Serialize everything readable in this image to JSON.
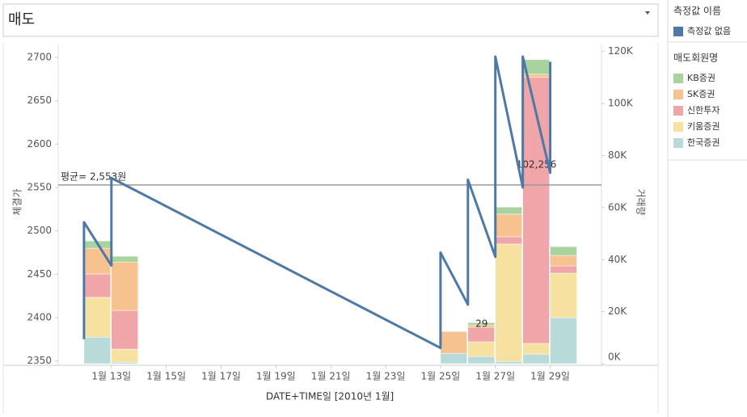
{
  "filter_label": "매도",
  "chart_data": {
    "type": "combo",
    "x_label": "DATE+TIME일 [2010년 1월]",
    "y_label": "체결가",
    "y2_label": "거래량",
    "xlim": [
      11.06,
      30.87
    ],
    "xticks": [
      {
        "value": 13,
        "label": "1월 13일"
      },
      {
        "value": 15,
        "label": "1월 15일"
      },
      {
        "value": 17,
        "label": "1월 17일"
      },
      {
        "value": 19,
        "label": "1월 19일"
      },
      {
        "value": 21,
        "label": "1월 21일"
      },
      {
        "value": 23,
        "label": "1월 23일"
      },
      {
        "value": 25,
        "label": "1월 25일"
      },
      {
        "value": 27,
        "label": "1월 27일"
      },
      {
        "value": 29,
        "label": "1월 29일"
      }
    ],
    "ylim": [
      2345,
      2715
    ],
    "yticks": [
      2350,
      2400,
      2450,
      2500,
      2550,
      2600,
      2650,
      2700
    ],
    "y2lim": [
      -600,
      122700
    ],
    "y2ticks": [
      {
        "value": 0,
        "label": "0K"
      },
      {
        "value": 20000,
        "label": "20K"
      },
      {
        "value": 40000,
        "label": "40K"
      },
      {
        "value": 60000,
        "label": "60K"
      },
      {
        "value": 80000,
        "label": "80K"
      },
      {
        "value": 100000,
        "label": "100K"
      },
      {
        "value": 120000,
        "label": "120K"
      }
    ],
    "legend_title": "매도회원명",
    "x": [
      12,
      13,
      25,
      26,
      27,
      28,
      29
    ],
    "series": [
      {
        "name": "KB증권",
        "color": "#a9d39e",
        "axis": "y2",
        "values": [
          2800,
          2200,
          0,
          900,
          2700,
          5600,
          3400
        ]
      },
      {
        "name": "SK증권",
        "color": "#f6c28f",
        "axis": "y2",
        "values": [
          9900,
          18600,
          8400,
          900,
          8700,
          1200,
          4000
        ]
      },
      {
        "name": "신한투자",
        "color": "#f0a5a8",
        "axis": "y2",
        "values": [
          9000,
          14900,
          0,
          5600,
          2800,
          102256,
          2800
        ],
        "value_labels": [
          null,
          null,
          null,
          null,
          null,
          "102,256",
          null
        ]
      },
      {
        "name": "키움증권",
        "color": "#f7e1a0",
        "axis": "y2",
        "values": [
          15300,
          5000,
          0,
          5600,
          45100,
          4100,
          17100
        ]
      },
      {
        "name": "한국증권",
        "color": "#b8dad9",
        "axis": "y2",
        "values": [
          10200,
          600,
          4000,
          2800,
          900,
          3700,
          17700
        ]
      }
    ],
    "line_legend_title": "측정값 이름",
    "line": {
      "name": "측정값 없음",
      "color": "#4e79a7",
      "x": [
        12,
        12,
        13,
        13,
        25,
        25,
        26,
        26,
        27,
        27,
        28,
        28,
        29,
        29
      ],
      "values": [
        2375,
        2510,
        2460,
        2561,
        2365,
        2475,
        2415,
        2559,
        2470,
        2701,
        2550,
        2701,
        2567,
        2695
      ]
    },
    "reference_line": {
      "label": "평균= 2,553원",
      "value": 2553
    },
    "annotation": "29"
  }
}
